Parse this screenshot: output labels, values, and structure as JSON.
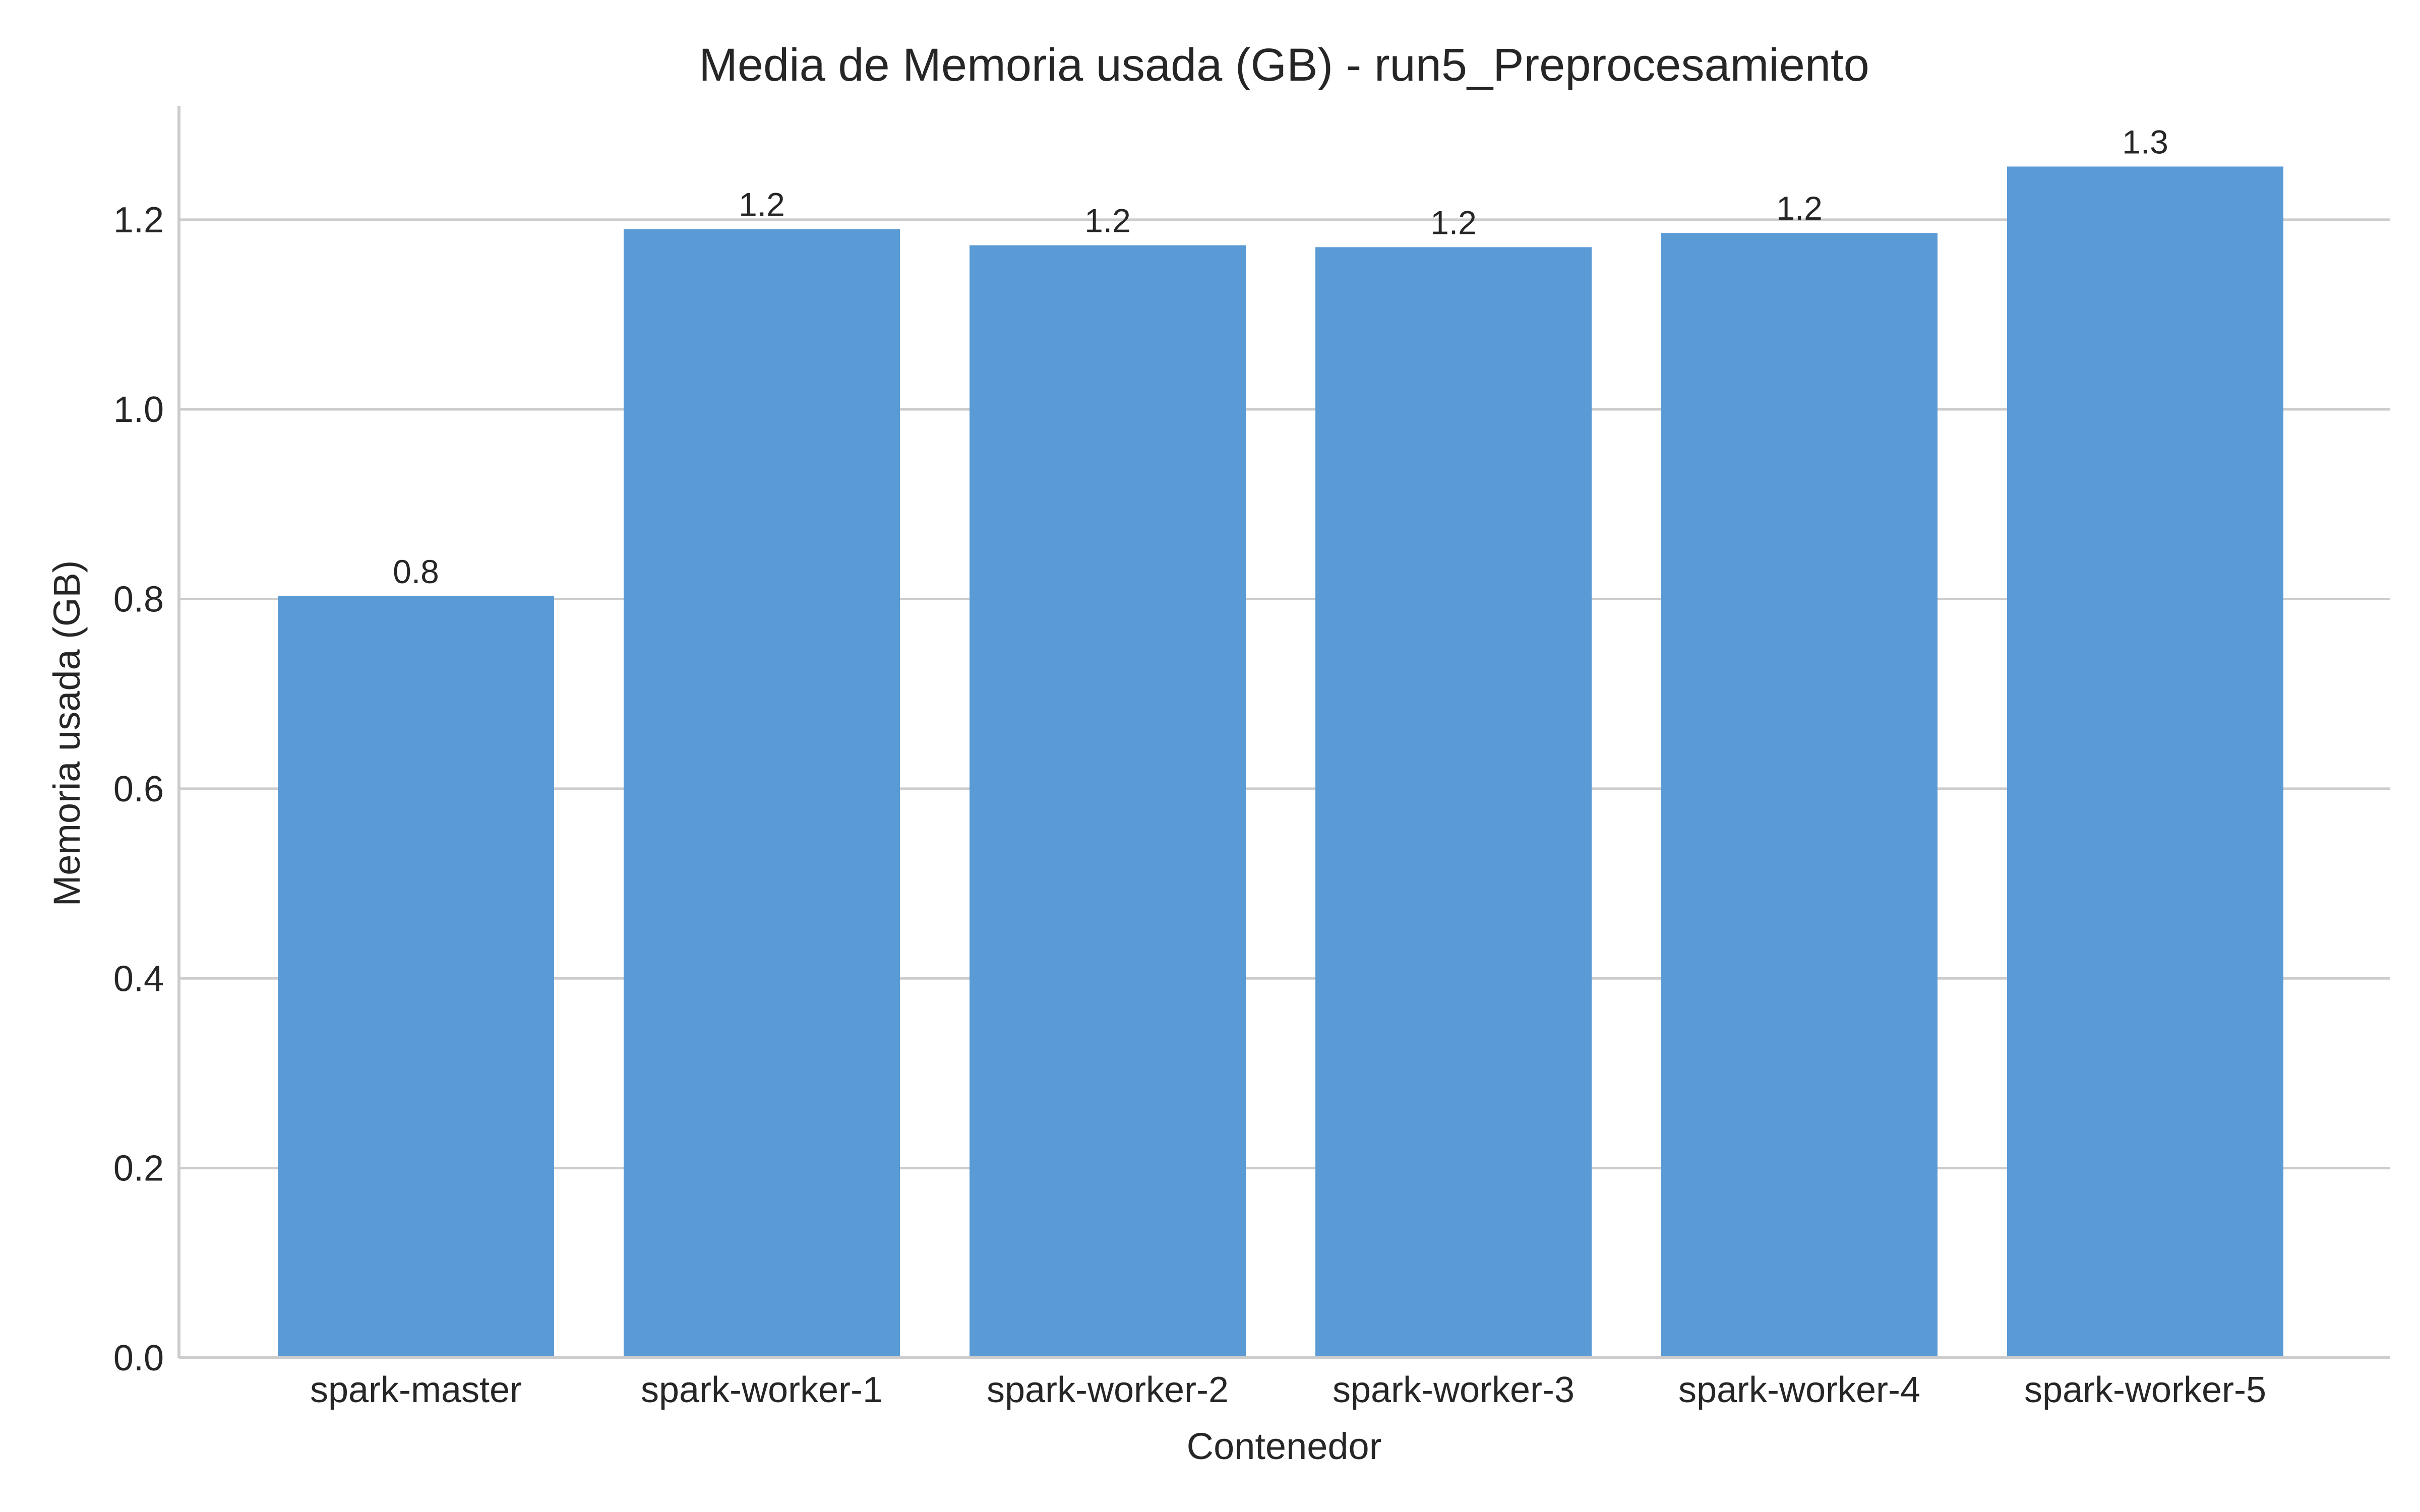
{
  "chart_data": {
    "type": "bar",
    "title": "Media de Memoria usada (GB) - run5_Preprocesamiento",
    "xlabel": "Contenedor",
    "ylabel": "Memoria usada (GB)",
    "categories": [
      "spark-master",
      "spark-worker-1",
      "spark-worker-2",
      "spark-worker-3",
      "spark-worker-4",
      "spark-worker-5"
    ],
    "values": [
      0.803,
      1.19,
      1.173,
      1.171,
      1.186,
      1.256
    ],
    "data_labels": [
      "0.8",
      "1.2",
      "1.2",
      "1.2",
      "1.2",
      "1.3"
    ],
    "ylim": [
      0,
      1.32
    ],
    "yticks": [
      0.0,
      0.2,
      0.4,
      0.6,
      0.8,
      1.0,
      1.2
    ],
    "ytick_labels": [
      "0.0",
      "0.2",
      "0.4",
      "0.6",
      "0.8",
      "1.0",
      "1.2"
    ],
    "grid": "horizontal",
    "bar_color": "#5b9bd5"
  }
}
